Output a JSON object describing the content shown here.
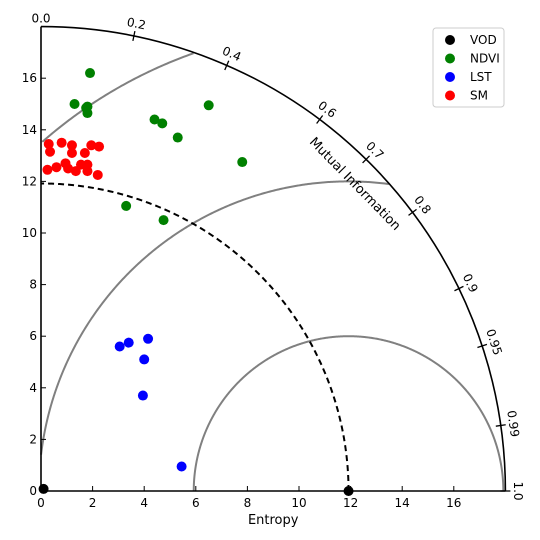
{
  "chart_data": {
    "type": "taylor-diagram",
    "xlabel": "Entropy",
    "arc_label": "Mutual Information",
    "x_range": [
      0,
      18
    ],
    "y_range": [
      0,
      18
    ],
    "x_ticks": [
      0,
      2,
      4,
      6,
      8,
      10,
      12,
      14,
      16
    ],
    "y_ticks": [
      0,
      2,
      4,
      6,
      8,
      10,
      12,
      14,
      16
    ],
    "top_left_label": "0.0",
    "correlation_ticks": [
      {
        "value": 0.2,
        "label": "0.2"
      },
      {
        "value": 0.4,
        "label": "0.4"
      },
      {
        "value": 0.6,
        "label": "0.6"
      },
      {
        "value": 0.7,
        "label": "0.7"
      },
      {
        "value": 0.8,
        "label": "0.8"
      },
      {
        "value": 0.9,
        "label": "0.9"
      },
      {
        "value": 0.95,
        "label": "0.95"
      },
      {
        "value": 0.99,
        "label": "0.99"
      },
      {
        "value": 1.0,
        "label": "1.0"
      }
    ],
    "reference": {
      "name": "VOD",
      "entropy": 11.92
    },
    "rmsd_contours": [
      6,
      12,
      18
    ],
    "legend_position": "top-right",
    "series": [
      {
        "name": "VOD",
        "color": "#000000",
        "points": [
          [
            0.1,
            0.08
          ],
          [
            11.92,
            0.0
          ]
        ]
      },
      {
        "name": "NDVI",
        "color": "#008000",
        "points": [
          [
            1.9,
            16.2
          ],
          [
            1.3,
            15.0
          ],
          [
            1.8,
            14.9
          ],
          [
            1.75,
            14.85
          ],
          [
            1.8,
            14.65
          ],
          [
            4.4,
            14.4
          ],
          [
            4.7,
            14.25
          ],
          [
            6.5,
            14.95
          ],
          [
            5.3,
            13.7
          ],
          [
            7.8,
            12.75
          ],
          [
            3.3,
            11.05
          ],
          [
            4.75,
            10.5
          ]
        ]
      },
      {
        "name": "LST",
        "color": "#0000ff",
        "points": [
          [
            4.15,
            5.9
          ],
          [
            3.4,
            5.75
          ],
          [
            3.05,
            5.6
          ],
          [
            4.0,
            5.1
          ],
          [
            3.95,
            3.7
          ],
          [
            5.45,
            0.95
          ]
        ]
      },
      {
        "name": "SM",
        "color": "#ff0000",
        "points": [
          [
            0.3,
            13.45
          ],
          [
            0.35,
            13.15
          ],
          [
            0.8,
            13.5
          ],
          [
            1.2,
            13.4
          ],
          [
            1.2,
            13.1
          ],
          [
            1.95,
            13.4
          ],
          [
            2.25,
            13.35
          ],
          [
            1.7,
            13.1
          ],
          [
            0.95,
            12.7
          ],
          [
            1.05,
            12.5
          ],
          [
            1.55,
            12.65
          ],
          [
            1.8,
            12.65
          ],
          [
            0.6,
            12.55
          ],
          [
            0.25,
            12.45
          ],
          [
            1.35,
            12.4
          ],
          [
            1.8,
            12.4
          ],
          [
            2.2,
            12.25
          ]
        ]
      }
    ]
  }
}
